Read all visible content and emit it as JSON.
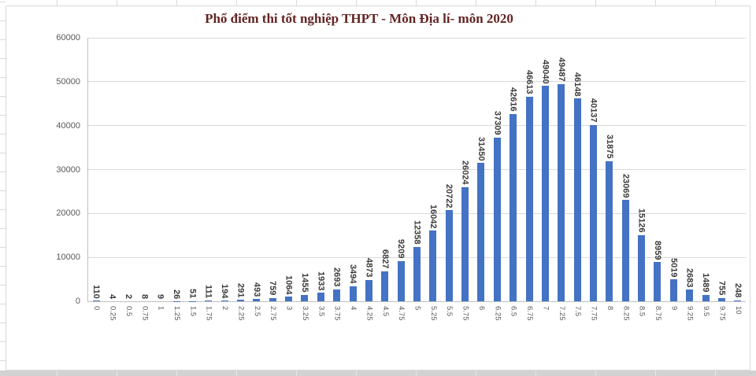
{
  "colors": {
    "bar": "#4472C4",
    "title": "#632423",
    "axis_label": "#595959",
    "data_label": "#3B3B3B",
    "gridline": "#D9D9D9",
    "axis_line": "#BFBFBF"
  },
  "chart_data": {
    "type": "bar",
    "title": "Phổ điểm thi tốt nghiệp THPT - Môn Địa lí- môn 2020",
    "xlabel": "",
    "ylabel": "",
    "ylim": [
      0,
      60000
    ],
    "ytick_step": 10000,
    "yticks": [
      "0",
      "10000",
      "20000",
      "30000",
      "40000",
      "50000",
      "60000"
    ],
    "gridlines": true,
    "legend": "none",
    "data_labels_rotated": true,
    "categories": [
      "0",
      "0.25",
      "0.5",
      "0.75",
      "1",
      "1.25",
      "1.5",
      "1.75",
      "2",
      "2.25",
      "2.5",
      "2.75",
      "3",
      "3.25",
      "3.5",
      "3.75",
      "4",
      "4.25",
      "4.5",
      "4.75",
      "5",
      "5.25",
      "5.5",
      "5.75",
      "6",
      "6.25",
      "6.5",
      "6.75",
      "7",
      "7.25",
      "7.5",
      "7.75",
      "8",
      "8.25",
      "8.5",
      "8.75",
      "9",
      "9.25",
      "9.5",
      "9.75",
      "10"
    ],
    "values": [
      110,
      4,
      2,
      8,
      9,
      26,
      51,
      111,
      194,
      291,
      493,
      759,
      1064,
      1455,
      1933,
      2693,
      3494,
      4873,
      6827,
      9209,
      12358,
      16042,
      20722,
      26024,
      31450,
      37309,
      42616,
      46613,
      49040,
      49487,
      46148,
      40137,
      31875,
      23069,
      15126,
      8959,
      5019,
      2683,
      1489,
      755,
      248
    ]
  }
}
